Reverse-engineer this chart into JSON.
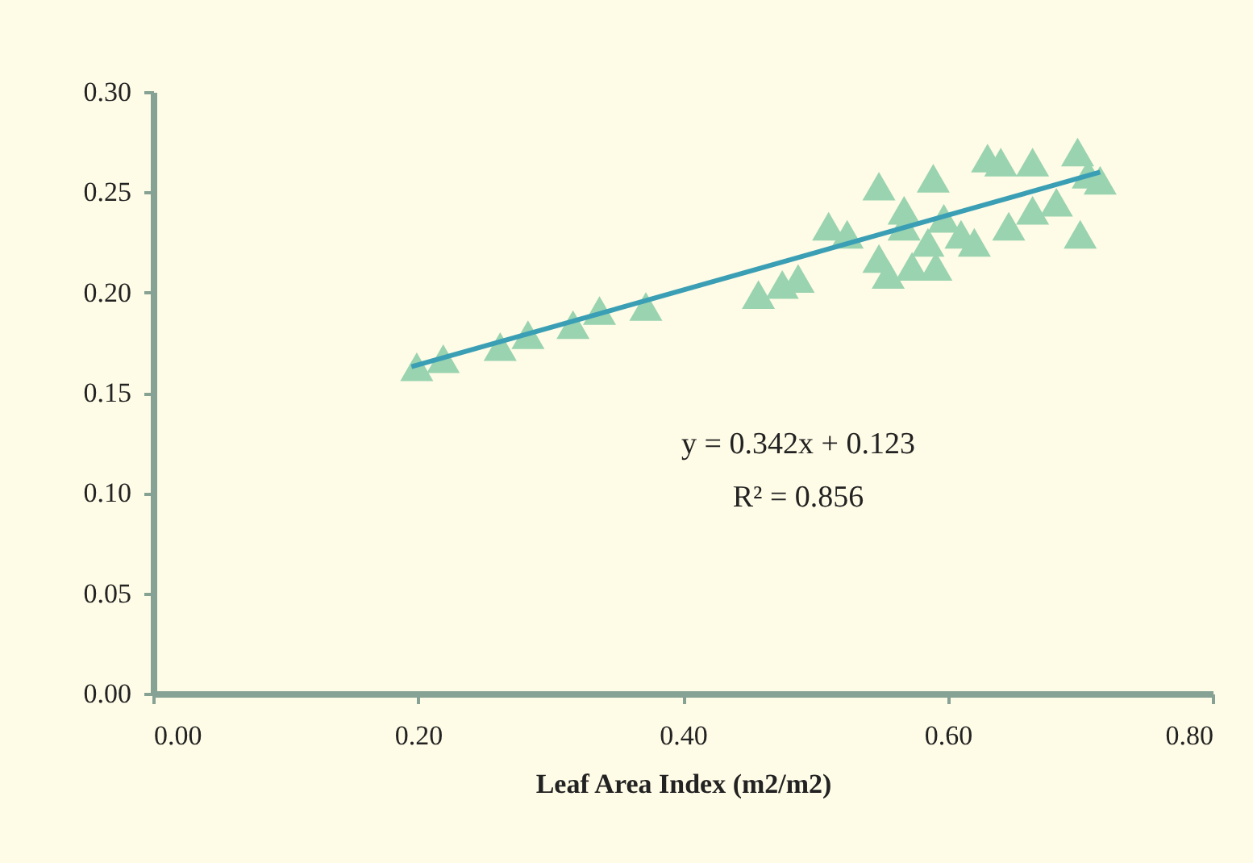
{
  "chart_data": {
    "type": "scatter",
    "xlabel": "Leaf Area Index (m2/m2)",
    "annotations": [
      "y = 0.342x + 0.123",
      "R² = 0.856"
    ],
    "xlim": [
      0,
      0.8
    ],
    "ylim": [
      0,
      0.3
    ],
    "xticks": [
      {
        "value": 0,
        "label": "0.00"
      },
      {
        "value": 0.2,
        "label": "0.20"
      },
      {
        "value": 0.4,
        "label": "0.40"
      },
      {
        "value": 0.6,
        "label": "0.60"
      },
      {
        "value": 0.8,
        "label": "0.80"
      }
    ],
    "yticks": [
      {
        "value": 0,
        "label": "0.00"
      },
      {
        "value": 0.05,
        "label": "0.05"
      },
      {
        "value": 0.1,
        "label": "0.10"
      },
      {
        "value": 0.15,
        "label": "0.15"
      },
      {
        "value": 0.2,
        "label": "0.20"
      },
      {
        "value": 0.25,
        "label": "0.25"
      },
      {
        "value": 0.3,
        "label": "0.30"
      }
    ],
    "grid": false,
    "series": [
      {
        "color": "#99d3b0",
        "marker": "triangle",
        "x": [
          0.199,
          0.219,
          0.262,
          0.283,
          0.317,
          0.337,
          0.372,
          0.457,
          0.475,
          0.487,
          0.51,
          0.524,
          0.548,
          0.548,
          0.555,
          0.567,
          0.567,
          0.573,
          0.585,
          0.589,
          0.591,
          0.597,
          0.61,
          0.62,
          0.63,
          0.64,
          0.646,
          0.664,
          0.664,
          0.682,
          0.698,
          0.7,
          0.706,
          0.715
        ],
        "values": [
          0.163,
          0.167,
          0.173,
          0.179,
          0.184,
          0.191,
          0.193,
          0.199,
          0.204,
          0.207,
          0.233,
          0.229,
          0.253,
          0.217,
          0.209,
          0.241,
          0.233,
          0.213,
          0.225,
          0.257,
          0.213,
          0.237,
          0.229,
          0.225,
          0.267,
          0.265,
          0.233,
          0.265,
          0.241,
          0.245,
          0.27,
          0.229,
          0.259,
          0.256
        ]
      },
      {
        "type": "line",
        "color": "#3a9fb5",
        "line_style": "solid",
        "marker": "none",
        "x": [
          0.195,
          0.715
        ],
        "values": [
          0.163,
          0.26
        ]
      }
    ]
  }
}
